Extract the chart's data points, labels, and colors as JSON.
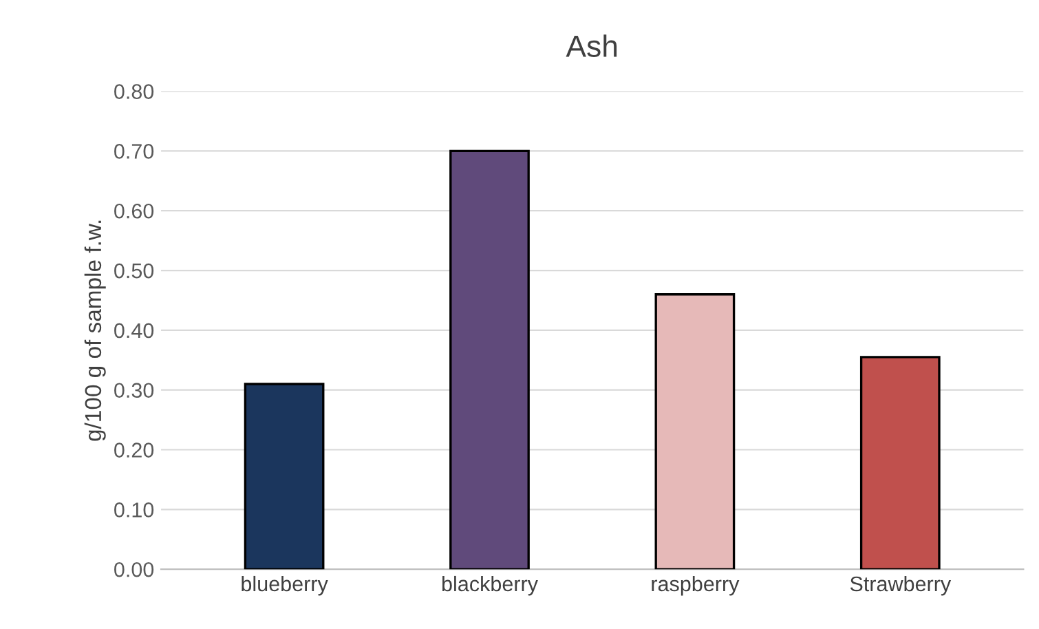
{
  "chart_data": {
    "type": "bar",
    "title": "Ash",
    "ylabel": "g/100 g of sample f.w.",
    "categories": [
      "blueberry",
      "blackberry",
      "raspberry",
      "Strawberry"
    ],
    "values": [
      0.31,
      0.7,
      0.46,
      0.355
    ],
    "colors": [
      "#1b365d",
      "#604a7b",
      "#e6b9b8",
      "#c0504d"
    ],
    "ylim": [
      0,
      0.8
    ],
    "yticks": [
      {
        "value": 0,
        "label": "0.00"
      },
      {
        "value": 0.1,
        "label": "0.10"
      },
      {
        "value": 0.2,
        "label": "0.20"
      },
      {
        "value": 0.3,
        "label": "0.30"
      },
      {
        "value": 0.4,
        "label": "0.40"
      },
      {
        "value": 0.5,
        "label": "0.50"
      },
      {
        "value": 0.6,
        "label": "0.60"
      },
      {
        "value": 0.7,
        "label": "0.70"
      },
      {
        "value": 0.8,
        "label": "0.80"
      }
    ],
    "grid": "y"
  }
}
